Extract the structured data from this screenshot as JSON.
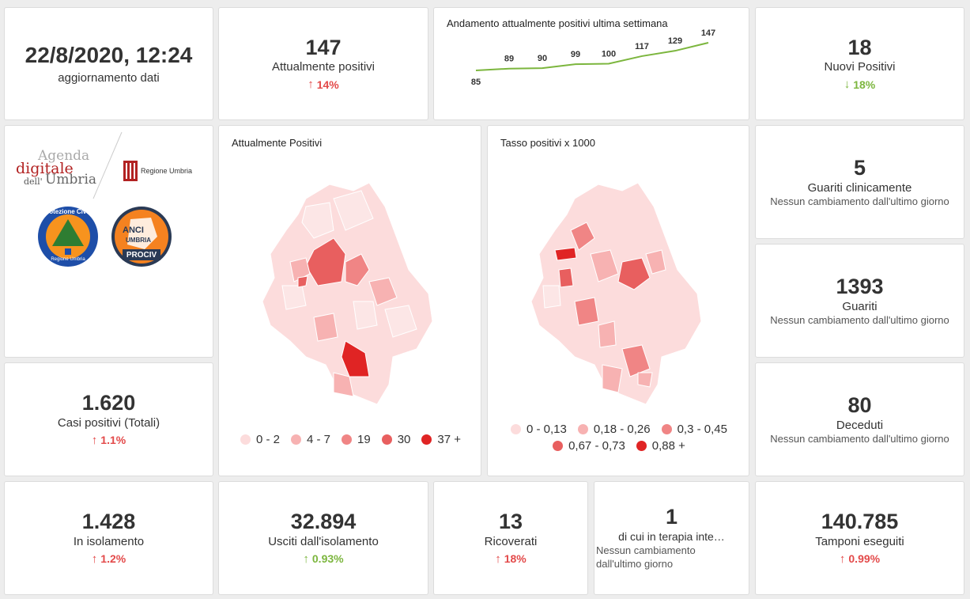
{
  "update": {
    "datetime": "22/8/2020, 12:24",
    "label": "aggiornamento dati"
  },
  "attualmente_positivi": {
    "value": "147",
    "label": "Attualmente positivi",
    "delta": "14%",
    "direction": "up"
  },
  "trend": {
    "title": "Andamento attualmente positivi ultima settimana",
    "chart_data": {
      "type": "line",
      "values": [
        85,
        89,
        90,
        99,
        100,
        117,
        129,
        147
      ],
      "color": "#7cb63e"
    }
  },
  "nuovi_positivi": {
    "value": "18",
    "label": "Nuovi Positivi",
    "delta": "18%",
    "direction": "down"
  },
  "logos": {
    "agenda_line1": "Agenda",
    "agenda_line2": "digitale",
    "agenda_line3": "dell'",
    "agenda_line4": "Umbria",
    "regione": "Regione Umbria",
    "protezione_civile": "Protezione Civile",
    "protezione_sub": "Regione Umbria",
    "anci_1": "ANCI",
    "anci_2": "UMBRIA",
    "anci_3": "PROCIV"
  },
  "map_positivi": {
    "title": "Attualmente Positivi",
    "legend": [
      {
        "label": "0 - 2",
        "color": "#fcdcdc"
      },
      {
        "label": "4 - 7",
        "color": "#f7b2b2"
      },
      {
        "label": "19",
        "color": "#f08585"
      },
      {
        "label": "30",
        "color": "#e85f5f"
      },
      {
        "label": "37 +",
        "color": "#e02424"
      }
    ]
  },
  "map_tasso": {
    "title": "Tasso positivi x 1000",
    "legend": [
      {
        "label": "0 - 0,13",
        "color": "#fcdcdc"
      },
      {
        "label": "0,18 - 0,26",
        "color": "#f7b2b2"
      },
      {
        "label": "0,3 - 0,45",
        "color": "#f08585"
      },
      {
        "label": "0,67 - 0,73",
        "color": "#e85f5f"
      },
      {
        "label": "0,88 +",
        "color": "#e02424"
      }
    ]
  },
  "guariti_clinicamente": {
    "value": "5",
    "label": "Guariti clinicamente",
    "sub": "Nessun cambiamento dall'ultimo giorno"
  },
  "guariti": {
    "value": "1393",
    "label": "Guariti",
    "sub": "Nessun cambiamento dall'ultimo giorno"
  },
  "deceduti": {
    "value": "80",
    "label": "Deceduti",
    "sub": "Nessun cambiamento dall'ultimo giorno"
  },
  "casi_totali": {
    "value": "1.620",
    "label": "Casi positivi (Totali)",
    "delta": "1.1%",
    "direction": "up"
  },
  "isolamento": {
    "value": "1.428",
    "label": "In isolamento",
    "delta": "1.2%",
    "direction": "up"
  },
  "usciti": {
    "value": "32.894",
    "label": "Usciti dall'isolamento",
    "delta": "0.93%",
    "direction": "upgood"
  },
  "ricoverati": {
    "value": "13",
    "label": "Ricoverati",
    "delta": "18%",
    "direction": "up"
  },
  "terapia": {
    "value": "1",
    "label": "di cui in terapia inte…",
    "sub1": "Nessun cambiamento",
    "sub2": "dall'ultimo giorno"
  },
  "tamponi": {
    "value": "140.785",
    "label": "Tamponi eseguiti",
    "delta": "0.99%",
    "direction": "up"
  },
  "arrows": {
    "up": "↑",
    "down": "↓"
  }
}
